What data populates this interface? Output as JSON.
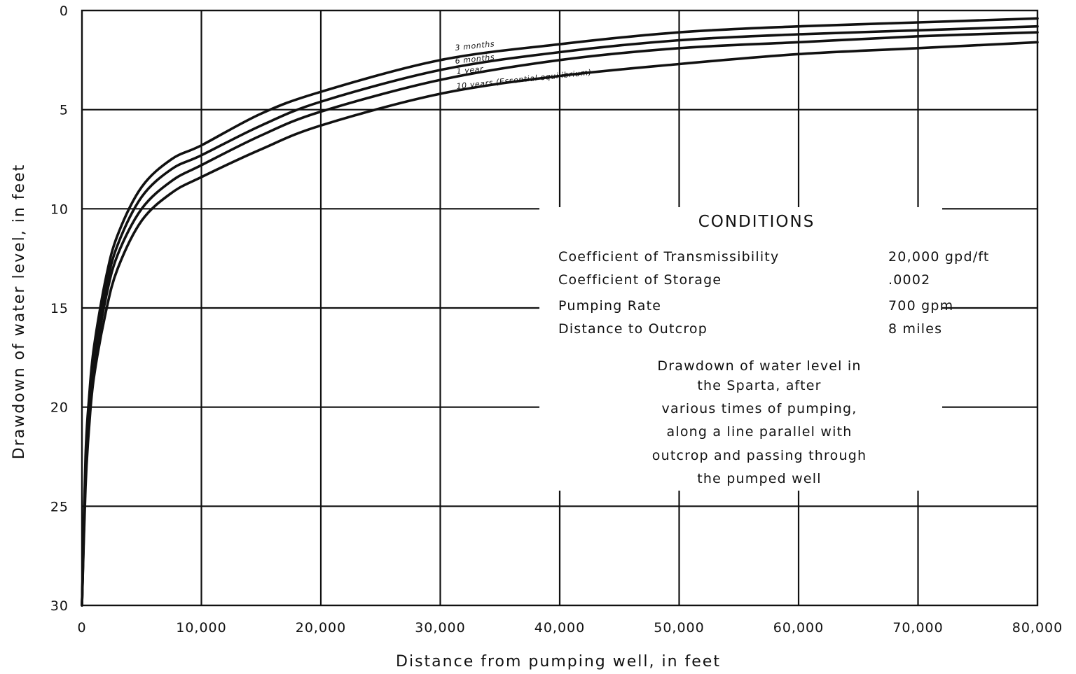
{
  "chart_data": {
    "type": "line",
    "xlabel": "Distance from pumping well, in feet",
    "ylabel": "Drawdown of water level, in feet",
    "xlim": [
      0,
      80000
    ],
    "ylim": [
      0,
      30
    ],
    "y_inverted": true,
    "grid": true,
    "x_ticks": [
      "0",
      "10,000",
      "20,000",
      "30,000",
      "40,000",
      "50,000",
      "60,000",
      "70,000",
      "80,000"
    ],
    "y_ticks": [
      "0",
      "5",
      "10",
      "15",
      "20",
      "25",
      "30"
    ],
    "x_tick_values": [
      0,
      10000,
      20000,
      30000,
      40000,
      50000,
      60000,
      70000,
      80000
    ],
    "y_tick_values": [
      0,
      5,
      10,
      15,
      20,
      25,
      30
    ],
    "series": [
      {
        "name": "3 months",
        "x": [
          0,
          300,
          600,
          1000,
          2000,
          3000,
          5000,
          7500,
          10000,
          15000,
          20000,
          30000,
          40000,
          50000,
          60000,
          70000,
          80000
        ],
        "y": [
          30,
          22.5,
          19.5,
          17.0,
          13.5,
          11.3,
          8.9,
          7.5,
          6.8,
          5.2,
          4.1,
          2.5,
          1.7,
          1.1,
          0.8,
          0.6,
          0.4
        ]
      },
      {
        "name": "6 months",
        "x": [
          0,
          300,
          600,
          1000,
          2000,
          3000,
          5000,
          7500,
          10000,
          15000,
          20000,
          30000,
          40000,
          50000,
          60000,
          70000,
          80000
        ],
        "y": [
          30,
          23.0,
          20.0,
          17.5,
          14.0,
          11.8,
          9.4,
          8.0,
          7.3,
          5.8,
          4.6,
          3.0,
          2.1,
          1.5,
          1.2,
          1.0,
          0.8
        ]
      },
      {
        "name": "1 year",
        "x": [
          0,
          300,
          600,
          1000,
          2000,
          3000,
          5000,
          7500,
          10000,
          15000,
          20000,
          30000,
          40000,
          50000,
          60000,
          70000,
          80000
        ],
        "y": [
          30,
          23.5,
          20.5,
          18.0,
          14.5,
          12.3,
          10.0,
          8.6,
          7.8,
          6.3,
          5.1,
          3.5,
          2.5,
          1.9,
          1.6,
          1.3,
          1.1
        ]
      },
      {
        "name": "10 years (Essential equilibrium)",
        "x": [
          0,
          300,
          600,
          1000,
          2000,
          3000,
          5000,
          7500,
          10000,
          15000,
          20000,
          30000,
          40000,
          50000,
          60000,
          70000,
          80000
        ],
        "y": [
          30,
          24.0,
          21.0,
          18.5,
          15.2,
          13.0,
          10.6,
          9.2,
          8.4,
          7.0,
          5.8,
          4.2,
          3.3,
          2.7,
          2.2,
          1.9,
          1.6
        ]
      }
    ],
    "annotations": {
      "conditions_title": "CONDITIONS",
      "conditions": [
        {
          "label": "Coefficient of Transmissibility",
          "value": "20,000 gpd/ft"
        },
        {
          "label": "Coefficient of Storage",
          "value": ".0002"
        },
        {
          "label": "Pumping Rate",
          "value": "700 gpm"
        },
        {
          "label": "Distance to Outcrop",
          "value": "8 miles"
        }
      ],
      "description": [
        "Drawdown of water level in",
        "the Sparta, after",
        "various times of pumping,",
        "along a line parallel with",
        "outcrop and passing through",
        "the pumped well"
      ]
    }
  }
}
